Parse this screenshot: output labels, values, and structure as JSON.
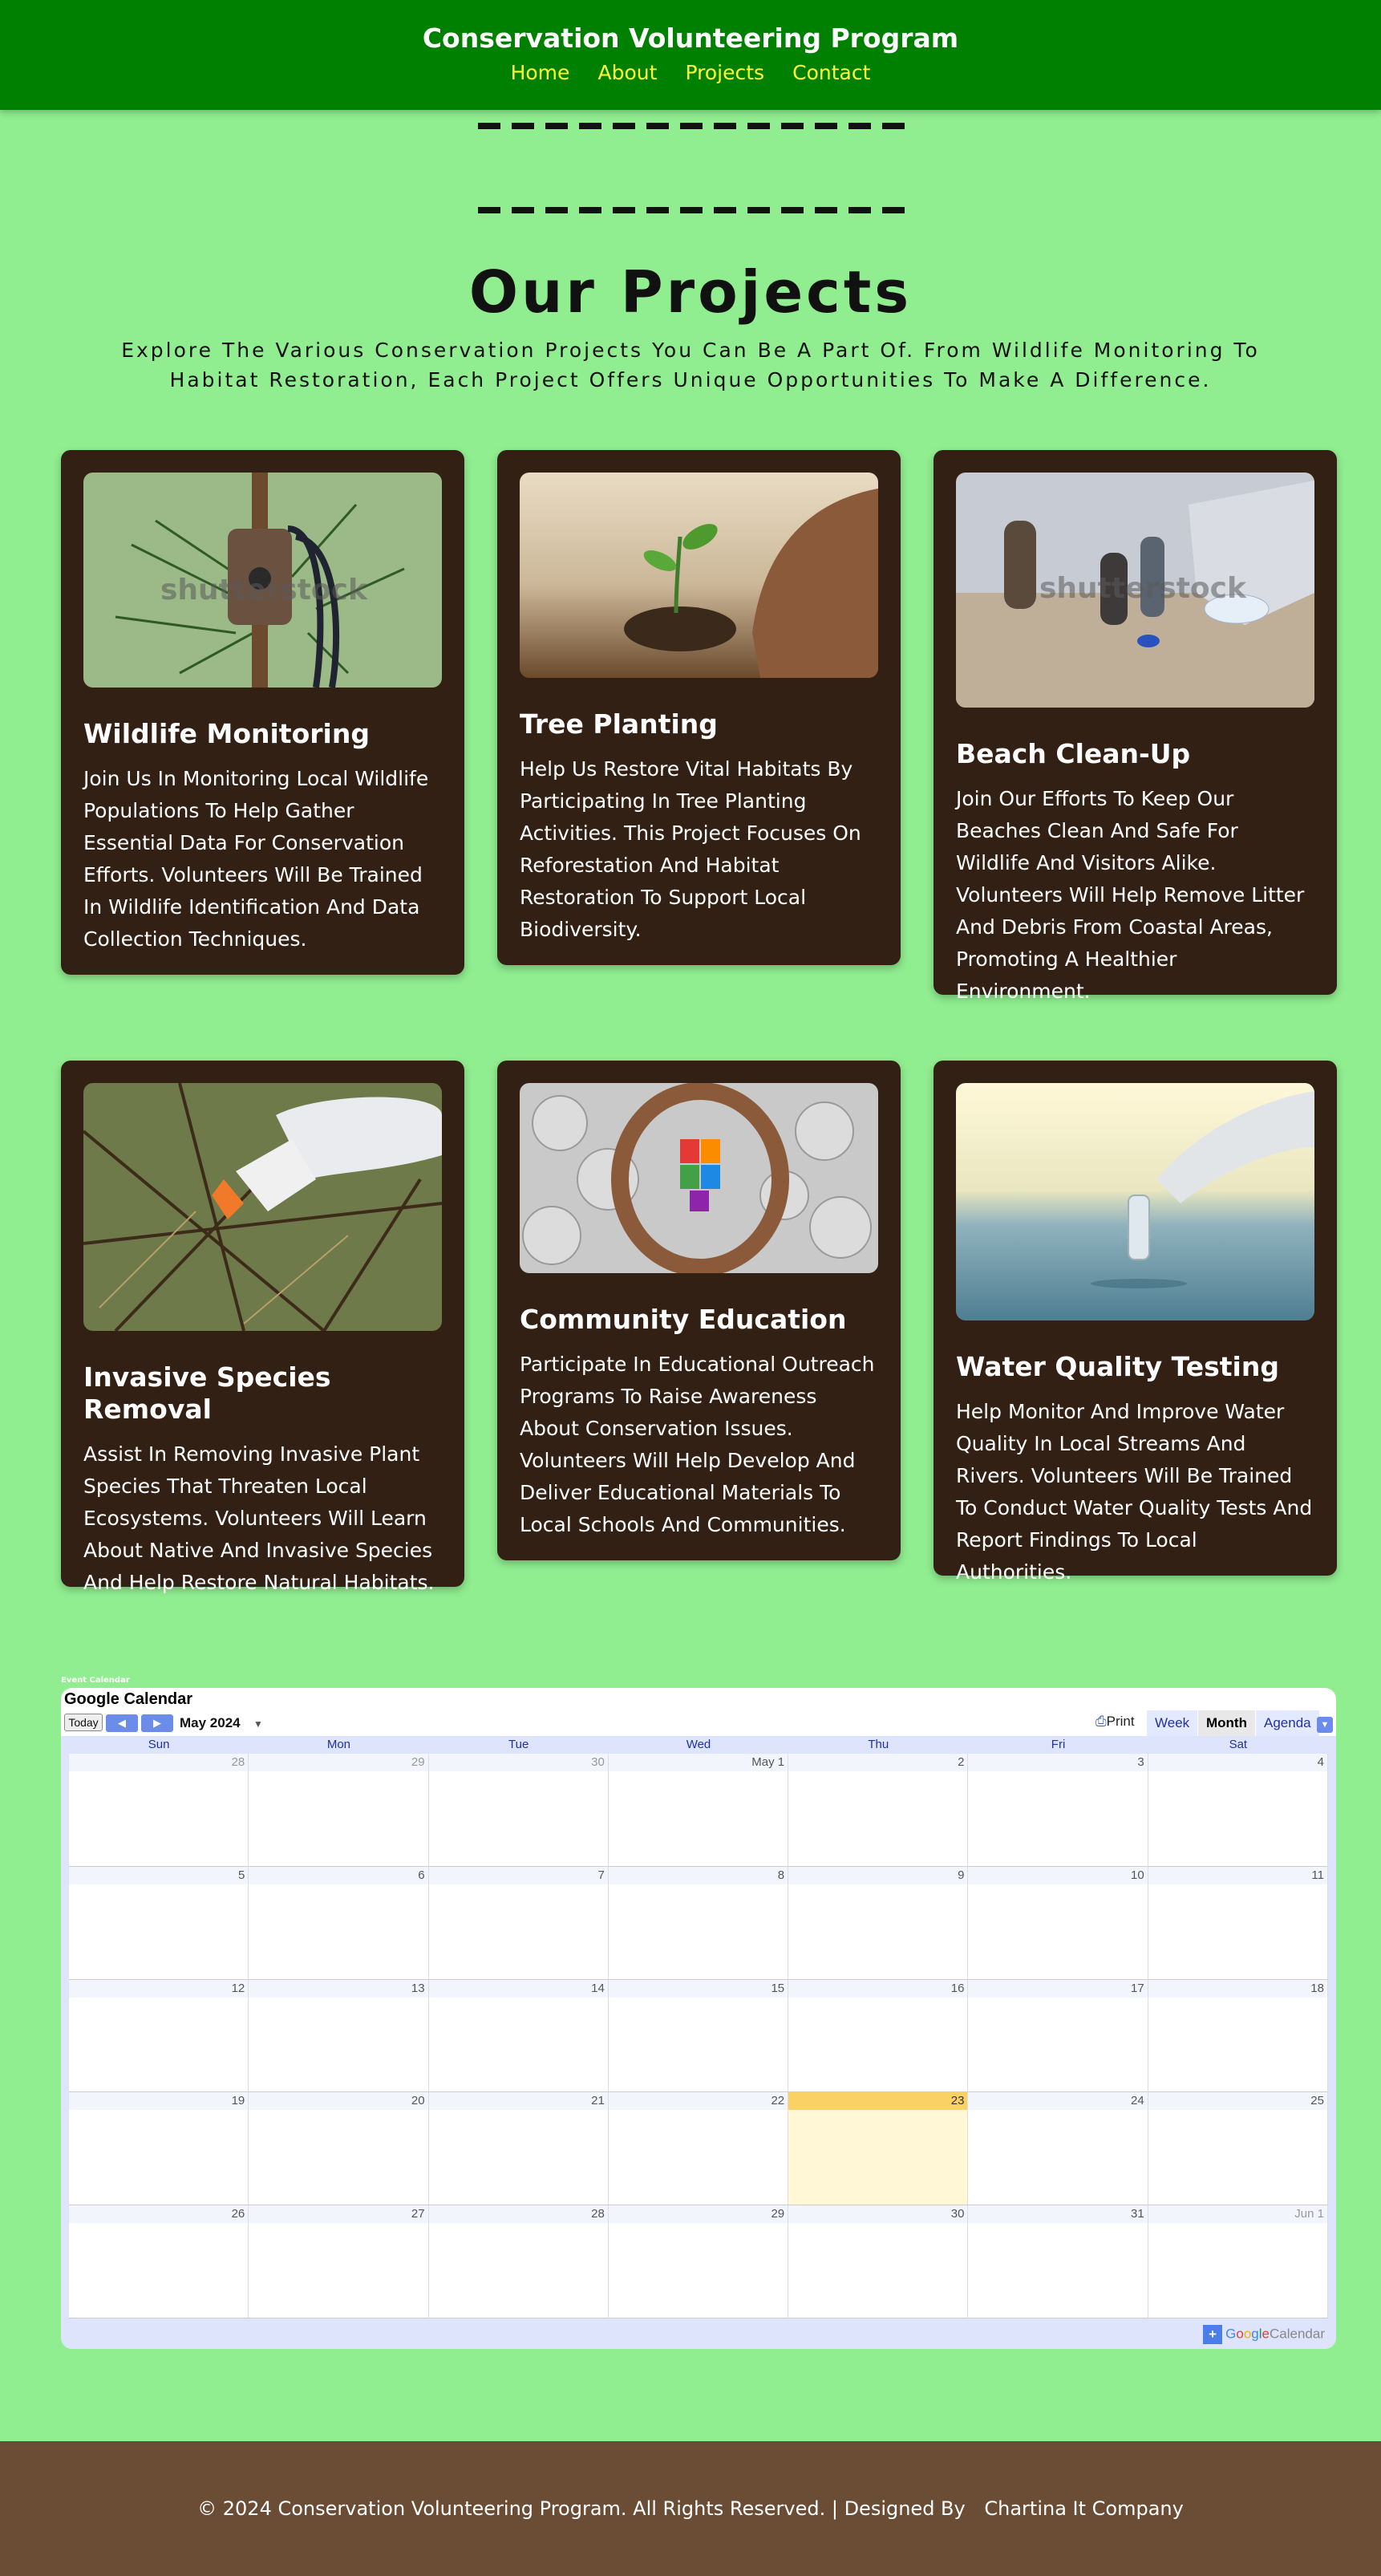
{
  "header": {
    "title": "Conservation Volunteering Program",
    "nav": [
      "Home",
      "About",
      "Projects",
      "Contact"
    ]
  },
  "projects_section": {
    "title": "Our Projects",
    "subtitle": "Explore The Various Conservation Projects You Can Be A Part Of. From Wildlife Monitoring To Habitat Restoration, Each Project Offers Unique Opportunities To Make A Difference."
  },
  "projects": [
    {
      "title": "Wildlife Monitoring",
      "description": "Join Us In Monitoring Local Wildlife Populations To Help Gather Essential Data For Conservation Efforts. Volunteers Will Be Trained In Wildlife Identification And Data Collection Techniques.",
      "watermark": "shutterstock"
    },
    {
      "title": "Tree Planting",
      "description": "Help Us Restore Vital Habitats By Participating In Tree Planting Activities. This Project Focuses On Reforestation And Habitat Restoration To Support Local Biodiversity."
    },
    {
      "title": "Beach Clean-Up",
      "description": "Join Our Efforts To Keep Our Beaches Clean And Safe For Wildlife And Visitors Alike. Volunteers Will Help Remove Litter And Debris From Coastal Areas, Promoting A Healthier Environment.",
      "watermark": "shutterstock"
    },
    {
      "title": "Invasive Species Removal",
      "description": "Assist In Removing Invasive Plant Species That Threaten Local Ecosystems. Volunteers Will Learn About Native And Invasive Species And Help Restore Natural Habitats."
    },
    {
      "title": "Community Education",
      "description": "Participate In Educational Outreach Programs To Raise Awareness About Conservation Issues. Volunteers Will Help Develop And Deliver Educational Materials To Local Schools And Communities."
    },
    {
      "title": "Water Quality Testing",
      "description": "Help Monitor And Improve Water Quality In Local Streams And Rivers. Volunteers Will Be Trained To Conduct Water Quality Tests And Report Findings To Local Authorities."
    }
  ],
  "calendar": {
    "caption": "Event Calendar",
    "title": "Google Calendar",
    "today_label": "Today",
    "month_label": "May 2024",
    "print_label": "Print",
    "views": [
      "Week",
      "Month",
      "Agenda"
    ],
    "active_view": "Month",
    "weekdays": [
      "Sun",
      "Mon",
      "Tue",
      "Wed",
      "Thu",
      "Fri",
      "Sat"
    ],
    "weeks": [
      [
        "28",
        "29",
        "30",
        "May 1",
        "2",
        "3",
        "4"
      ],
      [
        "5",
        "6",
        "7",
        "8",
        "9",
        "10",
        "11"
      ],
      [
        "12",
        "13",
        "14",
        "15",
        "16",
        "17",
        "18"
      ],
      [
        "19",
        "20",
        "21",
        "22",
        "23",
        "24",
        "25"
      ],
      [
        "26",
        "27",
        "28",
        "29",
        "30",
        "31",
        "Jun 1"
      ]
    ],
    "today": "23",
    "footer_brand": [
      "G",
      "o",
      "o",
      "g",
      "l",
      "e"
    ],
    "footer_suffix": "Calendar"
  },
  "footer": {
    "text": "© 2024 Conservation Volunteering Program. All Rights Reserved. | Designed By",
    "designer": "Chartina It Company"
  },
  "colors": {
    "page_bg": "#90ee90",
    "header_bg": "#008000",
    "nav_link": "#ffff33",
    "card_bg": "#332014",
    "footer_bg": "#6b4c35",
    "calendar_today": "#fad165"
  }
}
